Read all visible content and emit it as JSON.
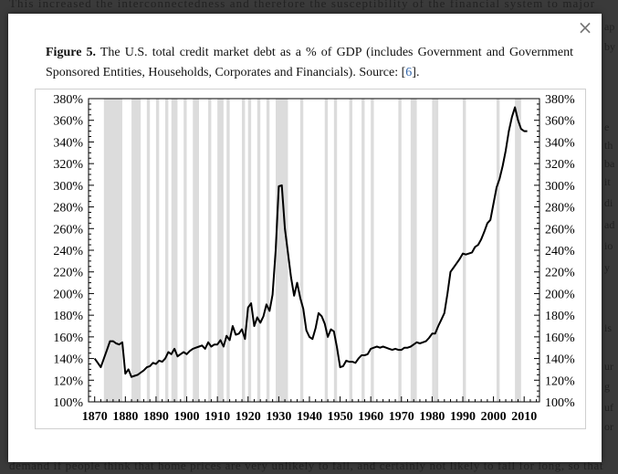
{
  "background": {
    "top_line": "This increased the interconnectedness and therefore the susceptibility of the financial system to major",
    "bottom_line": "demand if people think that home prices are very unlikely to fall, and certainly not likely to fall for long, so that",
    "right_fragments": [
      "ap",
      "by",
      "e",
      "th",
      "ba",
      "it",
      "di",
      "ad",
      "io",
      "y",
      "is",
      "ur",
      "g",
      "uf",
      "or"
    ]
  },
  "modal": {
    "close_label": "×",
    "caption": {
      "figure_label": "Figure 5.",
      "text": " The U.S. total credit market debt as a % of GDP (includes Government and Government Sponsored Entities, Households, Corporates and Financials). Source: [",
      "ref": "6",
      "after": "]."
    }
  },
  "colors": {
    "recession_band": "#dcdcdc",
    "line": "#000000",
    "link": "#3366aa"
  },
  "chart_data": {
    "type": "line",
    "title": "",
    "xlabel": "",
    "ylabel": "",
    "xlim": [
      1868,
      2015
    ],
    "ylim": [
      100,
      380
    ],
    "x_ticks": [
      1870,
      1880,
      1890,
      1900,
      1910,
      1920,
      1930,
      1940,
      1950,
      1960,
      1970,
      1980,
      1990,
      2000,
      2010
    ],
    "y_ticks": [
      "100%",
      "120%",
      "140%",
      "160%",
      "180%",
      "200%",
      "220%",
      "240%",
      "260%",
      "280%",
      "300%",
      "320%",
      "340%",
      "360%",
      "380%"
    ],
    "y_tick_values": [
      100,
      120,
      140,
      160,
      180,
      200,
      220,
      240,
      260,
      280,
      300,
      320,
      340,
      360,
      380
    ],
    "recession_bands": [
      [
        1873,
        1879
      ],
      [
        1882,
        1885
      ],
      [
        1887,
        1888
      ],
      [
        1890,
        1891
      ],
      [
        1893,
        1894
      ],
      [
        1895,
        1897
      ],
      [
        1899,
        1900
      ],
      [
        1902,
        1904
      ],
      [
        1907,
        1908
      ],
      [
        1910,
        1912
      ],
      [
        1913,
        1914
      ],
      [
        1918,
        1919
      ],
      [
        1920,
        1921
      ],
      [
        1923,
        1924
      ],
      [
        1926,
        1927
      ],
      [
        1929,
        1933
      ],
      [
        1937,
        1938
      ],
      [
        1945,
        1946
      ],
      [
        1948,
        1949
      ],
      [
        1953,
        1954
      ],
      [
        1957,
        1958
      ],
      [
        1960,
        1961
      ],
      [
        1969,
        1970
      ],
      [
        1973,
        1975
      ],
      [
        1980,
        1981
      ],
      [
        1981,
        1982
      ],
      [
        1990,
        1991
      ],
      [
        2001,
        2002
      ],
      [
        2007,
        2009
      ]
    ],
    "series": [
      {
        "x": [
          1870,
          1871,
          1872,
          1873,
          1874,
          1875,
          1876,
          1877,
          1878,
          1879,
          1880,
          1881,
          1882,
          1883,
          1884,
          1885,
          1886,
          1887,
          1888,
          1889,
          1890,
          1891,
          1892,
          1893,
          1894,
          1895,
          1896,
          1897,
          1898,
          1899,
          1900,
          1901,
          1902,
          1903,
          1904,
          1905,
          1906,
          1907,
          1908,
          1909,
          1910,
          1911,
          1912,
          1913,
          1914,
          1915,
          1916,
          1917,
          1918,
          1919,
          1920,
          1921,
          1922,
          1923,
          1924,
          1925,
          1926,
          1927,
          1928,
          1929,
          1930,
          1931,
          1932,
          1933,
          1934,
          1935,
          1936,
          1937,
          1938,
          1939,
          1940,
          1941,
          1942,
          1943,
          1944,
          1945,
          1946,
          1947,
          1948,
          1949,
          1950,
          1951,
          1952,
          1953,
          1954,
          1955,
          1956,
          1957,
          1958,
          1959,
          1960,
          1961,
          1962,
          1963,
          1964,
          1965,
          1966,
          1967,
          1968,
          1969,
          1970,
          1971,
          1972,
          1973,
          1974,
          1975,
          1976,
          1977,
          1978,
          1979,
          1980,
          1981,
          1982,
          1983,
          1984,
          1985,
          1986,
          1987,
          1988,
          1989,
          1990,
          1991,
          1992,
          1993,
          1994,
          1995,
          1996,
          1997,
          1998,
          1999,
          2000,
          2001,
          2002,
          2003,
          2004,
          2005,
          2006,
          2007,
          2008,
          2009,
          2010,
          2011
        ],
        "y": [
          140,
          136,
          132,
          140,
          148,
          156,
          156,
          154,
          153,
          155,
          126,
          130,
          123,
          124,
          125,
          127,
          129,
          132,
          133,
          136,
          135,
          138,
          137,
          140,
          146,
          144,
          149,
          142,
          144,
          146,
          144,
          147,
          149,
          150,
          151,
          152,
          149,
          155,
          151,
          153,
          153,
          157,
          151,
          161,
          157,
          170,
          162,
          163,
          167,
          158,
          187,
          191,
          170,
          178,
          173,
          179,
          190,
          184,
          199,
          240,
          299,
          300,
          260,
          238,
          215,
          198,
          210,
          196,
          186,
          166,
          160,
          158,
          168,
          182,
          179,
          172,
          160,
          167,
          165,
          150,
          132,
          133,
          138,
          137,
          137,
          136,
          140,
          143,
          143,
          144,
          149,
          150,
          151,
          150,
          151,
          150,
          149,
          148,
          149,
          148,
          148,
          150,
          150,
          151,
          153,
          155,
          154,
          155,
          156,
          159,
          163,
          163,
          170,
          176,
          182,
          200,
          220,
          224,
          228,
          232,
          237,
          236,
          237,
          238,
          243,
          245,
          250,
          257,
          265,
          268,
          283,
          298,
          306,
          318,
          332,
          350,
          363,
          372,
          360,
          352,
          350,
          350
        ]
      }
    ]
  }
}
